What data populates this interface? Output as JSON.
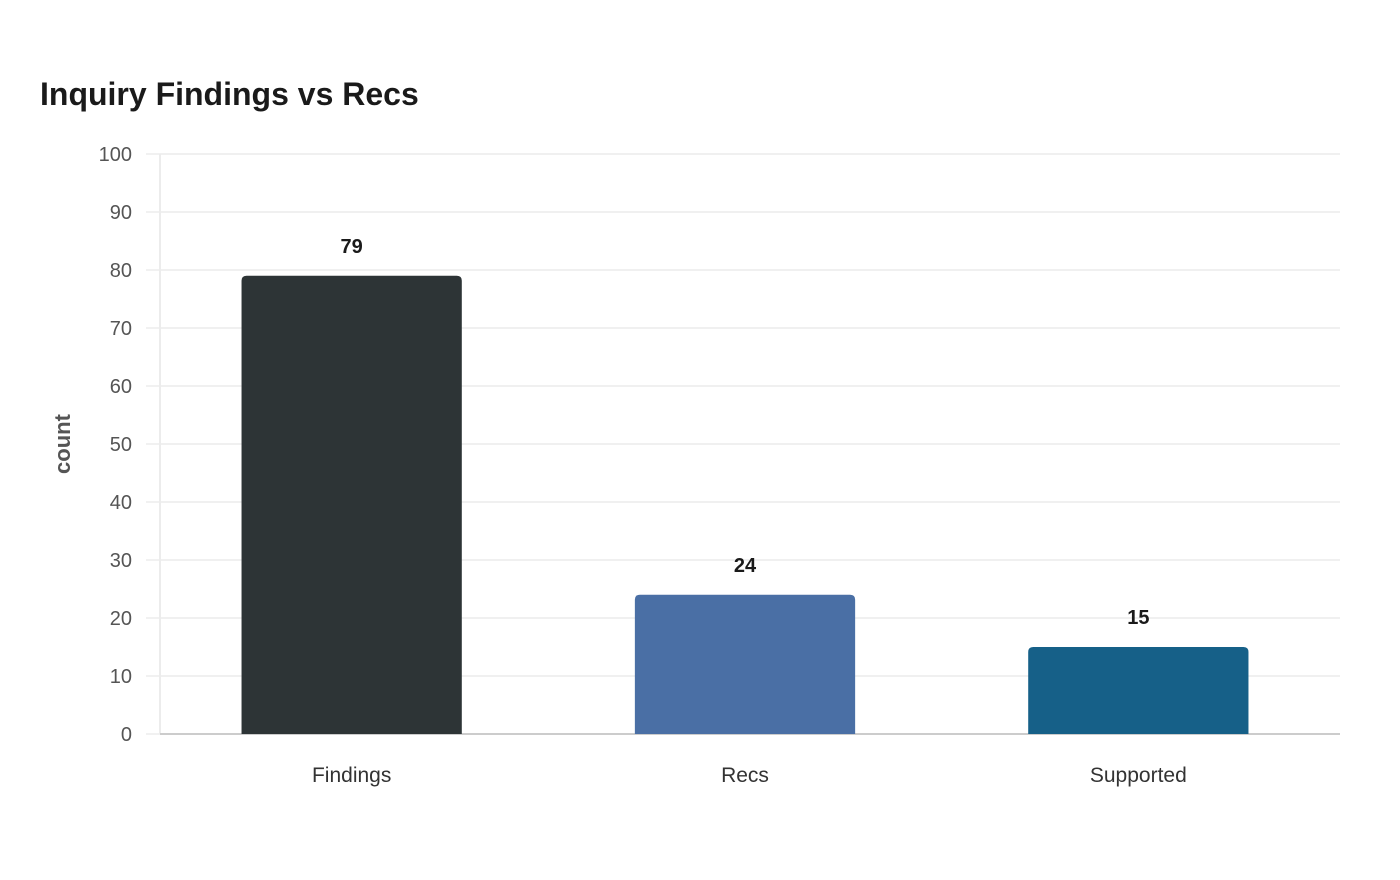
{
  "chart_data": {
    "type": "bar",
    "title": "Inquiry Findings vs Recs",
    "xlabel": "",
    "ylabel": "count",
    "ylim": [
      0,
      100
    ],
    "yticks": [
      0,
      10,
      20,
      30,
      40,
      50,
      60,
      70,
      80,
      90,
      100
    ],
    "grid": true,
    "categories": [
      "Findings",
      "Recs",
      "Supported"
    ],
    "values": [
      79,
      24,
      15
    ],
    "colors": [
      "#2d3436",
      "#4a6fa5",
      "#166088"
    ],
    "data_labels": [
      "79",
      "24",
      "15"
    ]
  },
  "style": {
    "grid_color": "#ececec",
    "axis_color": "#cccccc"
  }
}
